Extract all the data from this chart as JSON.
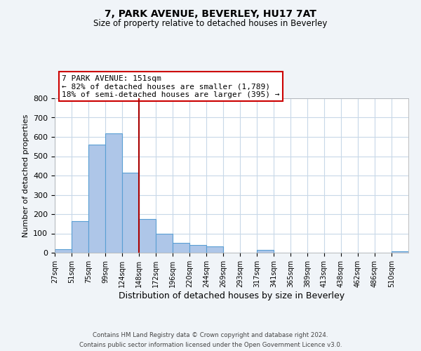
{
  "title": "7, PARK AVENUE, BEVERLEY, HU17 7AT",
  "subtitle": "Size of property relative to detached houses in Beverley",
  "xlabel": "Distribution of detached houses by size in Beverley",
  "ylabel": "Number of detached properties",
  "bin_labels": [
    "27sqm",
    "51sqm",
    "75sqm",
    "99sqm",
    "124sqm",
    "148sqm",
    "172sqm",
    "196sqm",
    "220sqm",
    "244sqm",
    "269sqm",
    "293sqm",
    "317sqm",
    "341sqm",
    "365sqm",
    "389sqm",
    "413sqm",
    "438sqm",
    "462sqm",
    "486sqm",
    "510sqm"
  ],
  "bin_values": [
    20,
    165,
    560,
    620,
    415,
    175,
    100,
    50,
    40,
    33,
    0,
    0,
    13,
    0,
    0,
    0,
    0,
    0,
    0,
    0,
    8
  ],
  "bar_color": "#aec6e8",
  "bar_edge_color": "#5a9fd4",
  "vline_x_index": 5,
  "vline_color": "#aa0000",
  "annotation_line1": "7 PARK AVENUE: 151sqm",
  "annotation_line2": "← 82% of detached houses are smaller (1,789)",
  "annotation_line3": "18% of semi-detached houses are larger (395) →",
  "annotation_box_color": "#cc0000",
  "ylim": [
    0,
    800
  ],
  "yticks": [
    0,
    100,
    200,
    300,
    400,
    500,
    600,
    700,
    800
  ],
  "footer_line1": "Contains HM Land Registry data © Crown copyright and database right 2024.",
  "footer_line2": "Contains public sector information licensed under the Open Government Licence v3.0.",
  "background_color": "#f0f4f8",
  "plot_bg_color": "#ffffff",
  "grid_color": "#c8d8e8"
}
